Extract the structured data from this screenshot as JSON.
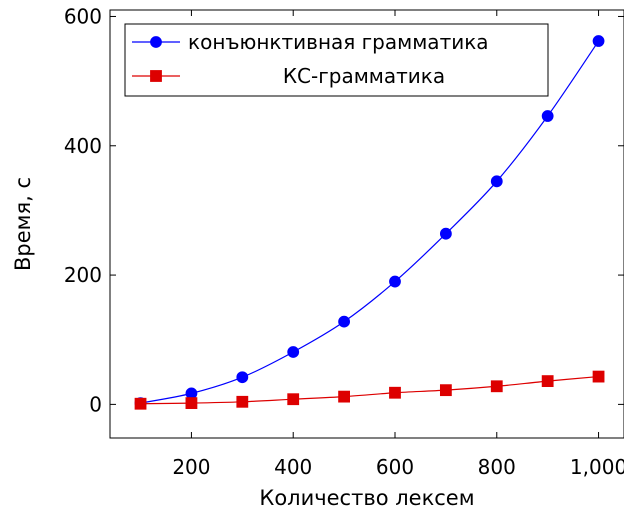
{
  "chart_data": {
    "type": "line",
    "xlabel": "Количество лексем",
    "ylabel": "Время, с",
    "xlim": [
      40,
      1050
    ],
    "ylim": [
      -52,
      610
    ],
    "x_ticks": [
      200,
      400,
      600,
      800,
      1000
    ],
    "x_tick_labels": [
      "200",
      "400",
      "600",
      "800",
      "1,000"
    ],
    "y_ticks": [
      0,
      200,
      400,
      600
    ],
    "y_tick_labels": [
      "0",
      "200",
      "400",
      "600"
    ],
    "grid": false,
    "legend_position": "top-left",
    "x": [
      100,
      200,
      300,
      400,
      500,
      600,
      700,
      800,
      900,
      1000
    ],
    "series": [
      {
        "name": "конъюнктивная грамматика",
        "color": "#0000ff",
        "marker": "circle",
        "values": [
          2,
          17,
          42,
          81,
          128,
          190,
          264,
          345,
          446,
          562
        ]
      },
      {
        "name": "КС-грамматика",
        "color": "#dd0000",
        "marker": "square",
        "values": [
          1,
          2,
          4,
          8,
          12,
          18,
          22,
          28,
          36,
          43
        ]
      }
    ]
  }
}
